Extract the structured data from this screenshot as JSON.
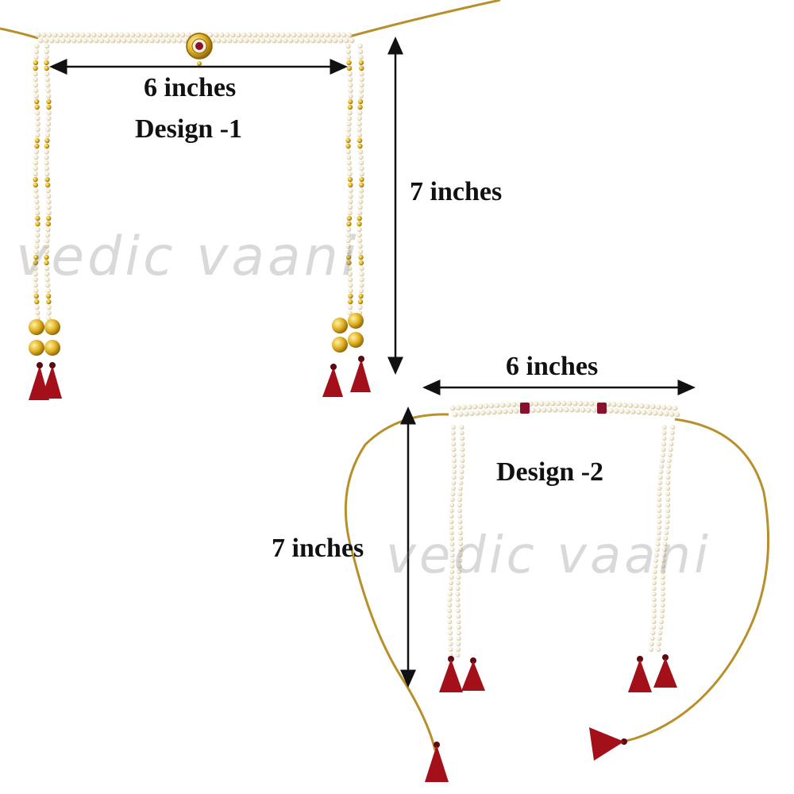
{
  "design_1": {
    "name": "Design -1",
    "width_label": "6 inches",
    "height_label": "7 inches"
  },
  "design_2": {
    "name": "Design -2",
    "width_label": "6 inches",
    "height_label": "7 inches"
  },
  "watermark": "vedic vaani",
  "colors": {
    "pearl": "#f3ecd6",
    "gold": "#d4a017",
    "thread_gold": "#b8902a",
    "tassel_red": "#a4101a",
    "ruby": "#8b1030",
    "arrow": "#111111"
  }
}
